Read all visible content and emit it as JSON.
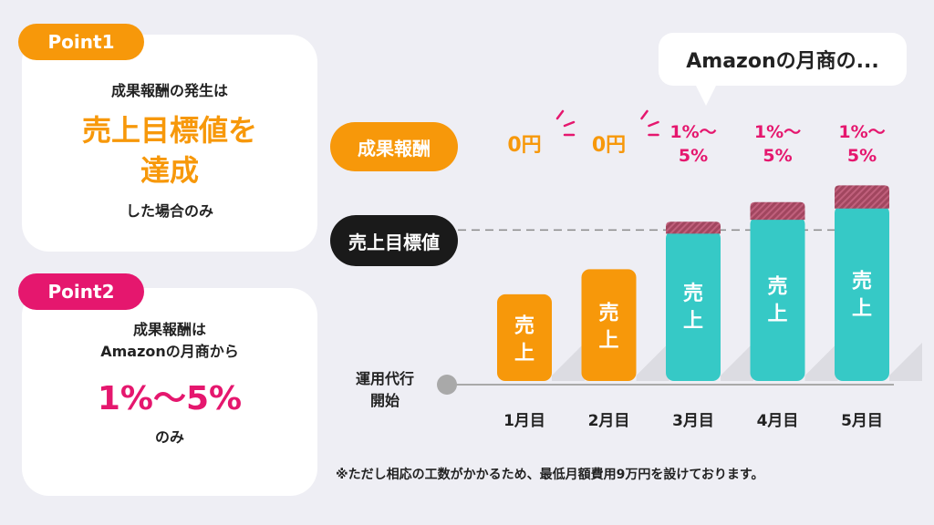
{
  "point1": {
    "badge": "Point1",
    "line1": "成果報酬の発生は",
    "highlight_line1": "売上目標値を",
    "highlight_line2": "達成",
    "line3": "した場合のみ"
  },
  "point2": {
    "badge": "Point2",
    "line1": "成果報酬は",
    "line2": "Amazonの月商から",
    "highlight": "1%〜5%",
    "line3": "のみ"
  },
  "bubble": {
    "text": "Amazonの月商の..."
  },
  "labels": {
    "fee": "成果報酬",
    "target": "売上目標値",
    "start_line1": "運用代行",
    "start_line2": "開始"
  },
  "footnote": "※ただし相応の工数がかかるため、最低月額費用9万円を設けております。",
  "colors": {
    "orange": "#f7980a",
    "pink": "#e5176e",
    "teal": "#36c9c6",
    "fee_cap": "#a1465f",
    "dark": "#1a1a1a"
  },
  "chart_data": {
    "type": "bar",
    "categories": [
      "1月目",
      "2月目",
      "3月目",
      "4月目",
      "5月目"
    ],
    "values": [
      31,
      40,
      57,
      64,
      70
    ],
    "fee_cap": [
      0,
      0,
      3,
      5,
      7
    ],
    "bar_label": "売上",
    "fee_labels": [
      [
        "0円"
      ],
      [
        "0円"
      ],
      [
        "1%〜",
        "5%"
      ],
      [
        "1%〜",
        "5%"
      ],
      [
        "1%〜",
        "5%"
      ]
    ],
    "target": 54,
    "target_label": "売上目標値",
    "bar_colors": [
      "#f7980a",
      "#f7980a",
      "#36c9c6",
      "#36c9c6",
      "#36c9c6"
    ],
    "ylim": [
      0,
      75
    ]
  }
}
